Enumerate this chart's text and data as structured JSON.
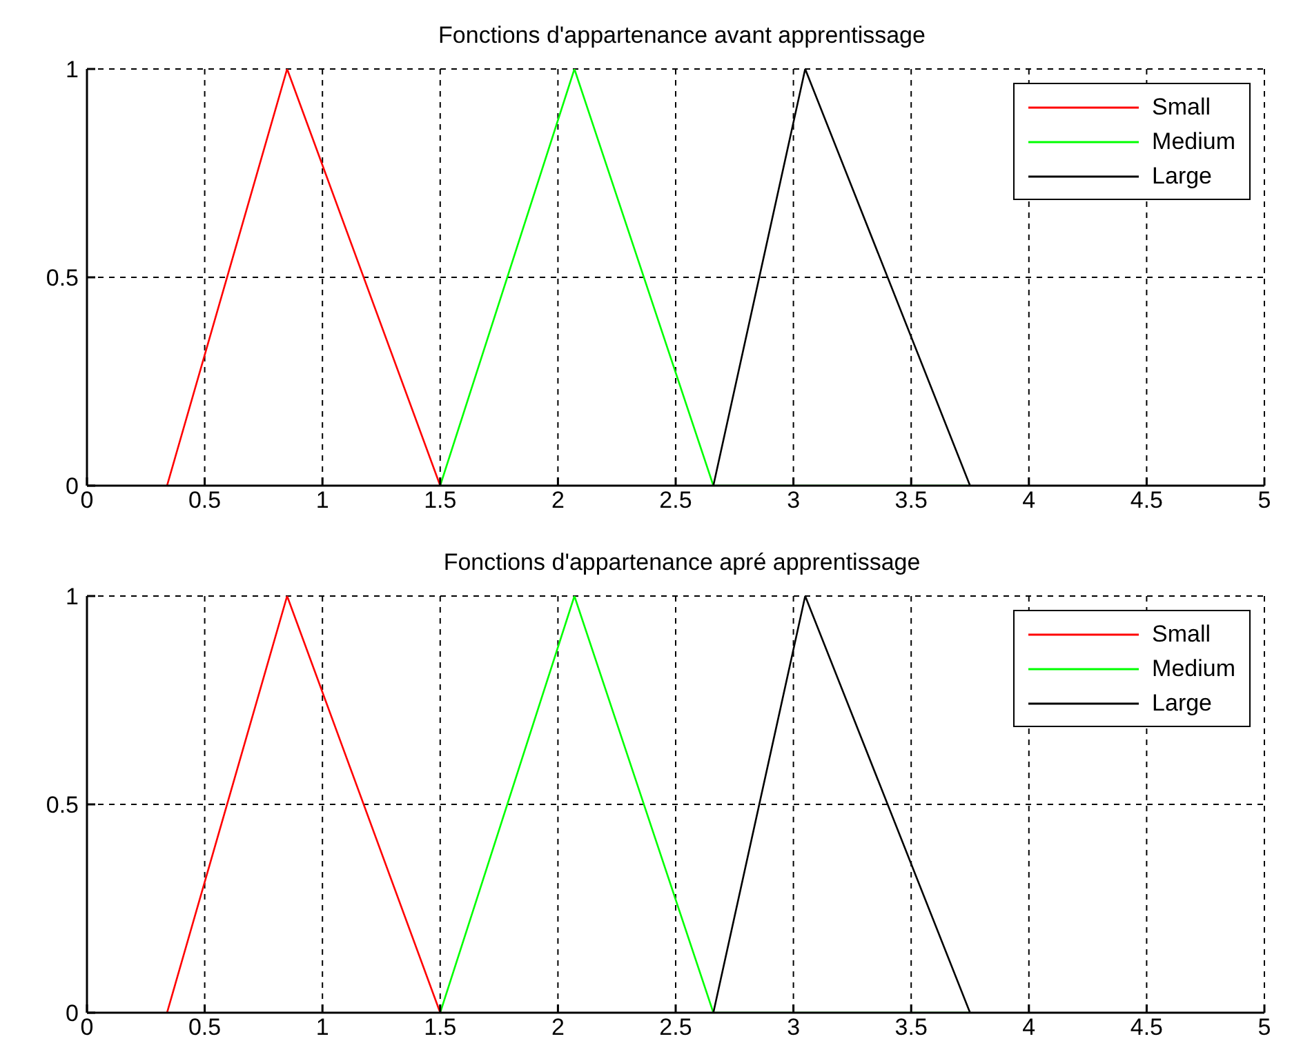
{
  "chart_data": [
    {
      "type": "line",
      "title": "Fonctions d'appartenance avant apprentissage",
      "xlim": [
        0,
        5
      ],
      "xticks": [
        0,
        0.5,
        1,
        1.5,
        2,
        2.5,
        3,
        3.5,
        4,
        4.5,
        5
      ],
      "ylim": [
        0,
        1
      ],
      "yticks": [
        0,
        0.5,
        1
      ],
      "grid": true,
      "legend": "top right",
      "line_style": "solid",
      "series": [
        {
          "name": "Small",
          "color": "#ff0000",
          "x": [
            0.34,
            0.85,
            1.5
          ],
          "values": [
            0,
            1,
            0
          ]
        },
        {
          "name": "Medium",
          "color": "#00ff00",
          "x": [
            1.5,
            2.07,
            2.66,
            3.75
          ],
          "values": [
            0,
            1,
            0,
            0
          ]
        },
        {
          "name": "Large",
          "color": "#000000",
          "x": [
            2.66,
            3.05,
            3.75
          ],
          "values": [
            0,
            1,
            0
          ]
        }
      ]
    },
    {
      "type": "line",
      "title": "Fonctions d'appartenance apré apprentissage",
      "xlim": [
        0,
        5
      ],
      "xticks": [
        0,
        0.5,
        1,
        1.5,
        2,
        2.5,
        3,
        3.5,
        4,
        4.5,
        5
      ],
      "ylim": [
        0,
        1
      ],
      "yticks": [
        0,
        0.5,
        1
      ],
      "grid": true,
      "legend": "top right",
      "line_style": "solid",
      "series": [
        {
          "name": "Small",
          "color": "#ff0000",
          "x": [
            0.34,
            0.85,
            1.5
          ],
          "values": [
            0,
            1,
            0
          ]
        },
        {
          "name": "Medium",
          "color": "#00ff00",
          "x": [
            1.5,
            2.07,
            2.66,
            3.75
          ],
          "values": [
            0,
            1,
            0,
            0
          ]
        },
        {
          "name": "Large",
          "color": "#000000",
          "x": [
            2.66,
            3.05,
            3.75
          ],
          "values": [
            0,
            1,
            0
          ]
        }
      ]
    }
  ]
}
